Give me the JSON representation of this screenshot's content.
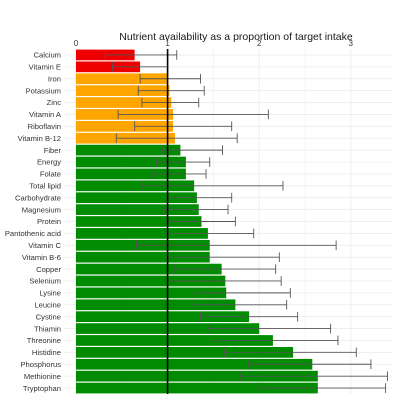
{
  "chart_data": {
    "type": "bar",
    "orientation": "horizontal",
    "title": "Nutrient availability as a proportion of target intake",
    "xlabel": "",
    "ylabel": "",
    "xlim": [
      -0.12,
      3.45
    ],
    "x_ticks": [
      "0",
      "1",
      "2",
      "3"
    ],
    "x_tick_position": "top",
    "grid": true,
    "reference_line": 1,
    "colors": {
      "red": "#ee0000",
      "orange": "#ffa500",
      "green": "#008b00",
      "error": "#555555",
      "ref": "#000000",
      "grid": "#ebebeb"
    },
    "categories": [
      "Calcium",
      "Vitamin E",
      "Iron",
      "Potassium",
      "Zinc",
      "Vitamin A",
      "Riboflavin",
      "Vitamin B-12",
      "Fiber",
      "Energy",
      "Folate",
      "Total lipid",
      "Carbohydrate",
      "Magnesium",
      "Protein",
      "Pantothenic acid",
      "Vitamin C",
      "Vitamin B-6",
      "Copper",
      "Selenium",
      "Lysine",
      "Leucine",
      "Cystine",
      "Thiamin",
      "Threonine",
      "Histidine",
      "Phosphorus",
      "Methionine",
      "Tryptophan"
    ],
    "values": [
      0.64,
      0.7,
      1.0,
      1.02,
      1.04,
      1.06,
      1.06,
      1.08,
      1.14,
      1.2,
      1.2,
      1.29,
      1.32,
      1.34,
      1.37,
      1.44,
      1.46,
      1.46,
      1.59,
      1.63,
      1.64,
      1.74,
      1.89,
      2.0,
      2.15,
      2.37,
      2.58,
      2.64,
      2.64
    ],
    "err_low": [
      0.32,
      0.4,
      0.7,
      0.68,
      0.72,
      0.46,
      0.64,
      0.44,
      0.94,
      0.88,
      0.84,
      0.72,
      0.98,
      0.96,
      0.98,
      0.98,
      0.66,
      0.98,
      1.08,
      1.02,
      1.3,
      1.28,
      1.36,
      1.44,
      1.5,
      1.62,
      1.88,
      1.8,
      2.0
    ],
    "err_high": [
      1.1,
      1.0,
      1.36,
      1.4,
      1.34,
      2.1,
      1.7,
      1.76,
      1.6,
      1.46,
      1.42,
      2.26,
      1.7,
      1.66,
      1.74,
      1.94,
      2.84,
      2.22,
      2.18,
      2.24,
      2.34,
      2.3,
      2.42,
      2.78,
      2.86,
      3.06,
      3.22,
      3.4,
      3.38
    ],
    "bar_colors": [
      "red",
      "red",
      "orange",
      "orange",
      "orange",
      "orange",
      "orange",
      "orange",
      "green",
      "green",
      "green",
      "green",
      "green",
      "green",
      "green",
      "green",
      "green",
      "green",
      "green",
      "green",
      "green",
      "green",
      "green",
      "green",
      "green",
      "green",
      "green",
      "green",
      "green"
    ]
  }
}
